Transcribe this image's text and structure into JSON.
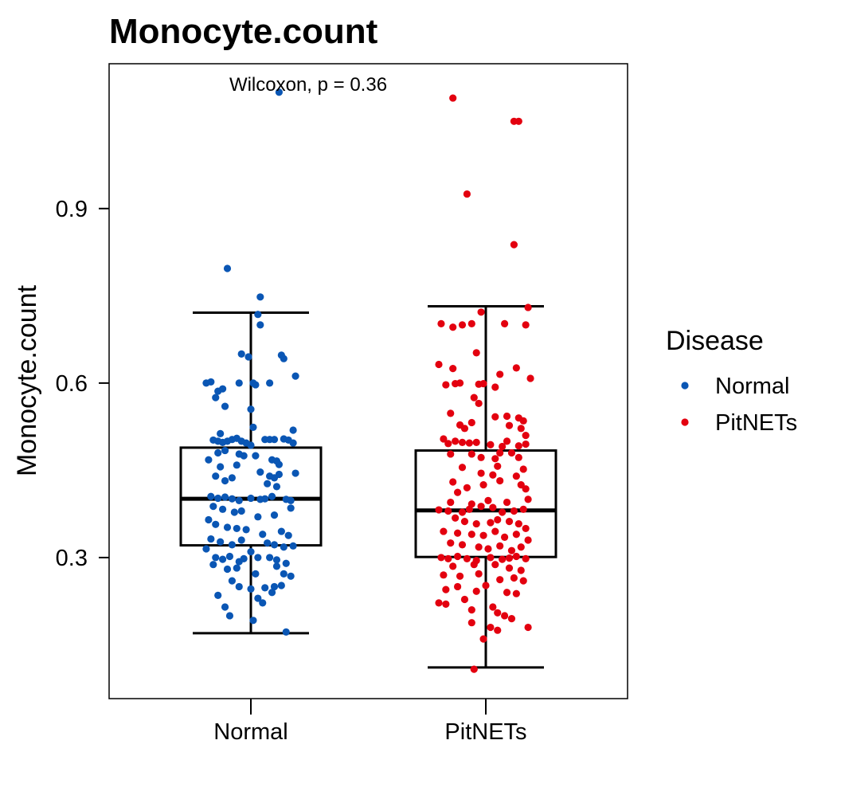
{
  "chart_data": {
    "type": "box",
    "title": "Monocyte.count",
    "xlabel": "",
    "ylabel": "Monocyte.count",
    "ylim": [
      0.0575,
      1.149
    ],
    "yticks": [
      0.3,
      0.6,
      0.9
    ],
    "ytick_labels": [
      "0.3",
      "0.6",
      "0.9"
    ],
    "categories": [
      "Normal",
      "PitNETs"
    ],
    "annotation": "Wilcoxon, p = 0.36",
    "grid": false,
    "legend": {
      "title": "Disease",
      "placement": "right",
      "entries": [
        {
          "label": "Normal",
          "color": "#0a56b4"
        },
        {
          "label": "PitNETs",
          "color": "#e3000f"
        }
      ]
    },
    "boxes": [
      {
        "category": "Normal",
        "whisker_low": 0.17,
        "q1": 0.321,
        "median": 0.401,
        "q3": 0.489,
        "whisker_high": 0.721,
        "color": "#0a56b4"
      },
      {
        "category": "PitNETs",
        "whisker_low": 0.111,
        "q1": 0.301,
        "median": 0.381,
        "q3": 0.484,
        "whisker_high": 0.732,
        "color": "#e3000f"
      }
    ],
    "series": [
      {
        "name": "Normal",
        "color": "#0a56b4",
        "points": [
          [
            0.12,
            1.1
          ],
          [
            -0.1,
            0.797
          ],
          [
            0.04,
            0.748
          ],
          [
            0.03,
            0.718
          ],
          [
            0.04,
            0.7
          ],
          [
            -0.04,
            0.65
          ],
          [
            -0.01,
            0.645
          ],
          [
            0.13,
            0.648
          ],
          [
            0.14,
            0.642
          ],
          [
            -0.19,
            0.6
          ],
          [
            -0.17,
            0.602
          ],
          [
            -0.05,
            0.6
          ],
          [
            0.01,
            0.6
          ],
          [
            0.02,
            0.597
          ],
          [
            0.08,
            0.6
          ],
          [
            0.19,
            0.612
          ],
          [
            -0.14,
            0.586
          ],
          [
            -0.12,
            0.59
          ],
          [
            -0.15,
            0.575
          ],
          [
            -0.11,
            0.56
          ],
          [
            0.0,
            0.555
          ],
          [
            0.01,
            0.524
          ],
          [
            -0.13,
            0.513
          ],
          [
            0.18,
            0.519
          ],
          [
            -0.16,
            0.502
          ],
          [
            -0.14,
            0.5
          ],
          [
            -0.12,
            0.498
          ],
          [
            -0.1,
            0.5
          ],
          [
            -0.08,
            0.503
          ],
          [
            -0.06,
            0.505
          ],
          [
            -0.04,
            0.5
          ],
          [
            -0.02,
            0.497
          ],
          [
            0.0,
            0.493
          ],
          [
            0.06,
            0.503
          ],
          [
            0.08,
            0.503
          ],
          [
            0.1,
            0.503
          ],
          [
            0.14,
            0.504
          ],
          [
            0.16,
            0.502
          ],
          [
            0.18,
            0.497
          ],
          [
            -0.14,
            0.48
          ],
          [
            -0.11,
            0.484
          ],
          [
            -0.05,
            0.478
          ],
          [
            -0.03,
            0.475
          ],
          [
            0.02,
            0.475
          ],
          [
            0.09,
            0.468
          ],
          [
            0.12,
            0.46
          ],
          [
            0.11,
            0.466
          ],
          [
            -0.18,
            0.468
          ],
          [
            -0.13,
            0.456
          ],
          [
            -0.06,
            0.459
          ],
          [
            0.04,
            0.447
          ],
          [
            0.08,
            0.44
          ],
          [
            0.1,
            0.437
          ],
          [
            0.12,
            0.443
          ],
          [
            0.19,
            0.445
          ],
          [
            -0.15,
            0.44
          ],
          [
            -0.11,
            0.432
          ],
          [
            -0.08,
            0.437
          ],
          [
            0.07,
            0.427
          ],
          [
            0.11,
            0.422
          ],
          [
            -0.17,
            0.405
          ],
          [
            -0.14,
            0.402
          ],
          [
            -0.11,
            0.404
          ],
          [
            -0.08,
            0.401
          ],
          [
            -0.05,
            0.398
          ],
          [
            0.0,
            0.402
          ],
          [
            0.04,
            0.4
          ],
          [
            0.06,
            0.401
          ],
          [
            0.09,
            0.405
          ],
          [
            0.15,
            0.4
          ],
          [
            0.17,
            0.398
          ],
          [
            -0.16,
            0.388
          ],
          [
            -0.12,
            0.383
          ],
          [
            -0.07,
            0.378
          ],
          [
            -0.04,
            0.38
          ],
          [
            0.03,
            0.37
          ],
          [
            0.1,
            0.373
          ],
          [
            0.17,
            0.385
          ],
          [
            -0.18,
            0.365
          ],
          [
            -0.15,
            0.357
          ],
          [
            -0.1,
            0.352
          ],
          [
            -0.06,
            0.35
          ],
          [
            -0.02,
            0.348
          ],
          [
            0.05,
            0.34
          ],
          [
            0.13,
            0.345
          ],
          [
            0.16,
            0.338
          ],
          [
            -0.17,
            0.332
          ],
          [
            -0.13,
            0.327
          ],
          [
            -0.08,
            0.322
          ],
          [
            -0.04,
            0.33
          ],
          [
            0.0,
            0.31
          ],
          [
            0.07,
            0.325
          ],
          [
            0.1,
            0.322
          ],
          [
            0.14,
            0.318
          ],
          [
            0.18,
            0.32
          ],
          [
            -0.19,
            0.315
          ],
          [
            -0.15,
            0.3
          ],
          [
            -0.12,
            0.297
          ],
          [
            -0.09,
            0.302
          ],
          [
            -0.05,
            0.293
          ],
          [
            -0.03,
            0.298
          ],
          [
            0.03,
            0.3
          ],
          [
            0.08,
            0.3
          ],
          [
            0.11,
            0.296
          ],
          [
            0.15,
            0.29
          ],
          [
            -0.16,
            0.288
          ],
          [
            -0.1,
            0.28
          ],
          [
            -0.06,
            0.282
          ],
          [
            0.02,
            0.272
          ],
          [
            0.11,
            0.285
          ],
          [
            0.14,
            0.272
          ],
          [
            0.17,
            0.268
          ],
          [
            -0.08,
            0.26
          ],
          [
            -0.05,
            0.25
          ],
          [
            0.0,
            0.246
          ],
          [
            0.06,
            0.248
          ],
          [
            0.1,
            0.25
          ],
          [
            0.13,
            0.252
          ],
          [
            -0.14,
            0.235
          ],
          [
            0.03,
            0.23
          ],
          [
            0.05,
            0.222
          ],
          [
            0.09,
            0.24
          ],
          [
            -0.11,
            0.215
          ],
          [
            -0.09,
            0.2
          ],
          [
            0.01,
            0.192
          ],
          [
            0.15,
            0.172
          ]
        ]
      },
      {
        "name": "PitNETs",
        "color": "#e3000f",
        "points": [
          [
            -0.14,
            1.09
          ],
          [
            0.12,
            1.05
          ],
          [
            0.14,
            1.05
          ],
          [
            -0.08,
            0.925
          ],
          [
            0.12,
            0.838
          ],
          [
            0.18,
            0.73
          ],
          [
            -0.02,
            0.722
          ],
          [
            -0.19,
            0.702
          ],
          [
            -0.14,
            0.696
          ],
          [
            -0.1,
            0.7
          ],
          [
            -0.06,
            0.702
          ],
          [
            0.08,
            0.702
          ],
          [
            0.17,
            0.7
          ],
          [
            -0.04,
            0.652
          ],
          [
            -0.2,
            0.632
          ],
          [
            -0.14,
            0.625
          ],
          [
            0.13,
            0.626
          ],
          [
            0.06,
            0.615
          ],
          [
            0.19,
            0.608
          ],
          [
            -0.17,
            0.597
          ],
          [
            -0.13,
            0.599
          ],
          [
            -0.11,
            0.6
          ],
          [
            -0.03,
            0.598
          ],
          [
            -0.01,
            0.599
          ],
          [
            0.04,
            0.593
          ],
          [
            -0.05,
            0.575
          ],
          [
            -0.03,
            0.565
          ],
          [
            -0.15,
            0.548
          ],
          [
            0.04,
            0.542
          ],
          [
            -0.06,
            0.532
          ],
          [
            0.09,
            0.543
          ],
          [
            0.14,
            0.54
          ],
          [
            0.16,
            0.535
          ],
          [
            -0.11,
            0.528
          ],
          [
            -0.09,
            0.522
          ],
          [
            0.1,
            0.527
          ],
          [
            0.15,
            0.522
          ],
          [
            0.17,
            0.51
          ],
          [
            -0.18,
            0.504
          ],
          [
            -0.16,
            0.496
          ],
          [
            -0.13,
            0.5
          ],
          [
            -0.1,
            0.498
          ],
          [
            -0.07,
            0.497
          ],
          [
            -0.04,
            0.498
          ],
          [
            0.02,
            0.494
          ],
          [
            0.07,
            0.491
          ],
          [
            0.09,
            0.5
          ],
          [
            0.14,
            0.492
          ],
          [
            0.17,
            0.495
          ],
          [
            -0.15,
            0.478
          ],
          [
            -0.06,
            0.478
          ],
          [
            -0.02,
            0.472
          ],
          [
            0.04,
            0.47
          ],
          [
            0.06,
            0.48
          ],
          [
            0.11,
            0.48
          ],
          [
            0.14,
            0.472
          ],
          [
            -0.1,
            0.455
          ],
          [
            0.05,
            0.457
          ],
          [
            0.16,
            0.452
          ],
          [
            -0.02,
            0.445
          ],
          [
            0.03,
            0.442
          ],
          [
            0.13,
            0.44
          ],
          [
            -0.14,
            0.43
          ],
          [
            -0.08,
            0.42
          ],
          [
            -0.01,
            0.425
          ],
          [
            0.06,
            0.432
          ],
          [
            0.15,
            0.425
          ],
          [
            0.17,
            0.418
          ],
          [
            -0.12,
            0.412
          ],
          [
            -0.15,
            0.395
          ],
          [
            -0.06,
            0.392
          ],
          [
            0.01,
            0.398
          ],
          [
            0.09,
            0.395
          ],
          [
            0.18,
            0.4
          ],
          [
            -0.2,
            0.382
          ],
          [
            -0.16,
            0.38
          ],
          [
            -0.1,
            0.378
          ],
          [
            -0.07,
            0.383
          ],
          [
            -0.02,
            0.388
          ],
          [
            0.03,
            0.386
          ],
          [
            0.07,
            0.378
          ],
          [
            0.12,
            0.38
          ],
          [
            0.16,
            0.383
          ],
          [
            -0.13,
            0.368
          ],
          [
            -0.09,
            0.362
          ],
          [
            -0.04,
            0.358
          ],
          [
            0.02,
            0.36
          ],
          [
            0.05,
            0.365
          ],
          [
            0.1,
            0.362
          ],
          [
            0.14,
            0.358
          ],
          [
            0.17,
            0.35
          ],
          [
            -0.18,
            0.345
          ],
          [
            -0.12,
            0.342
          ],
          [
            -0.06,
            0.34
          ],
          [
            -0.01,
            0.338
          ],
          [
            0.04,
            0.345
          ],
          [
            0.08,
            0.335
          ],
          [
            0.13,
            0.34
          ],
          [
            0.18,
            0.33
          ],
          [
            -0.15,
            0.325
          ],
          [
            -0.1,
            0.322
          ],
          [
            -0.03,
            0.318
          ],
          [
            0.01,
            0.315
          ],
          [
            0.06,
            0.32
          ],
          [
            0.11,
            0.312
          ],
          [
            0.15,
            0.318
          ],
          [
            -0.19,
            0.3
          ],
          [
            -0.16,
            0.298
          ],
          [
            -0.12,
            0.302
          ],
          [
            -0.08,
            0.298
          ],
          [
            -0.04,
            0.295
          ],
          [
            0.02,
            0.3
          ],
          [
            0.07,
            0.297
          ],
          [
            0.1,
            0.299
          ],
          [
            0.13,
            0.302
          ],
          [
            0.17,
            0.298
          ],
          [
            -0.14,
            0.285
          ],
          [
            -0.05,
            0.288
          ],
          [
            0.04,
            0.288
          ],
          [
            0.1,
            0.282
          ],
          [
            0.15,
            0.278
          ],
          [
            -0.18,
            0.27
          ],
          [
            -0.11,
            0.268
          ],
          [
            -0.03,
            0.272
          ],
          [
            0.06,
            0.262
          ],
          [
            0.12,
            0.265
          ],
          [
            0.16,
            0.26
          ],
          [
            -0.17,
            0.245
          ],
          [
            -0.12,
            0.25
          ],
          [
            -0.04,
            0.242
          ],
          [
            0.0,
            0.252
          ],
          [
            0.09,
            0.24
          ],
          [
            0.13,
            0.238
          ],
          [
            -0.2,
            0.222
          ],
          [
            -0.17,
            0.22
          ],
          [
            -0.09,
            0.228
          ],
          [
            -0.06,
            0.21
          ],
          [
            0.03,
            0.215
          ],
          [
            0.05,
            0.205
          ],
          [
            0.08,
            0.2
          ],
          [
            0.11,
            0.195
          ],
          [
            -0.06,
            0.188
          ],
          [
            0.02,
            0.18
          ],
          [
            0.05,
            0.175
          ],
          [
            0.18,
            0.18
          ],
          [
            -0.01,
            0.16
          ],
          [
            -0.05,
            0.108
          ]
        ]
      }
    ]
  }
}
